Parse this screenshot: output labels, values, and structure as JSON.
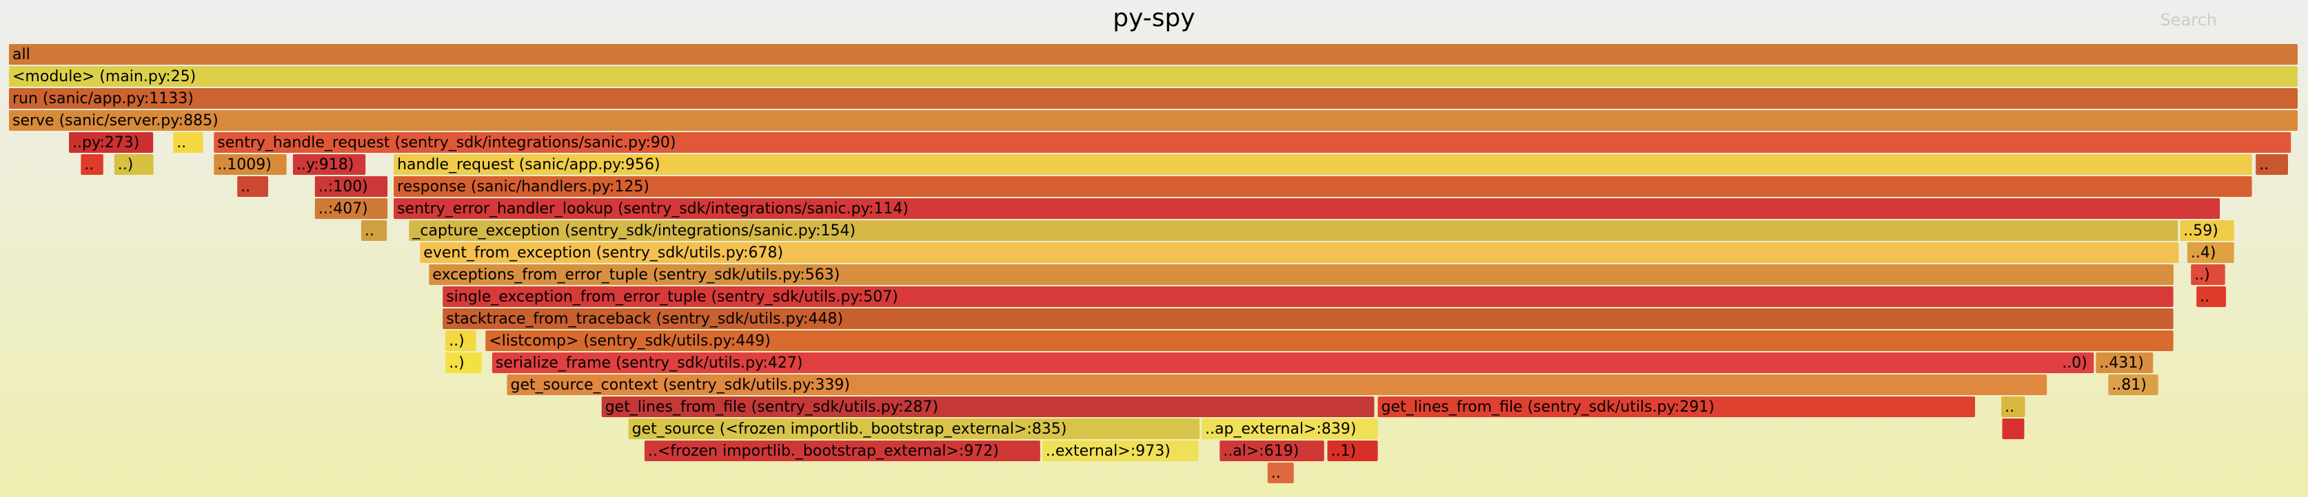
{
  "title": "py-spy",
  "search": {
    "placeholder": "Search"
  },
  "chart_data": {
    "type": "flamegraph",
    "title": "py-spy",
    "total_percent": 100,
    "frames": [
      {
        "depth": 0,
        "start": 0.0,
        "width": 100.0,
        "label": "all",
        "color": "#d07838"
      },
      {
        "depth": 1,
        "start": 0.0,
        "width": 100.0,
        "label": "<module> (main.py:25)",
        "color": "#dcd04a"
      },
      {
        "depth": 2,
        "start": 0.0,
        "width": 100.0,
        "label": "run (sanic/app.py:1133)",
        "color": "#cc6330"
      },
      {
        "depth": 3,
        "start": 0.0,
        "width": 100.0,
        "label": "serve (sanic/server.py:885)",
        "color": "#d88a3a"
      },
      {
        "depth": 4,
        "start": 2.62,
        "width": 3.74,
        "label": "..py:273)",
        "color": "#cc3030"
      },
      {
        "depth": 4,
        "start": 7.17,
        "width": 1.36,
        "label": "..",
        "color": "#f4d840"
      },
      {
        "depth": 4,
        "start": 8.95,
        "width": 90.76,
        "label": "sentry_handle_request (sentry_sdk/integrations/sanic.py:90)",
        "color": "#e05838"
      },
      {
        "depth": 5,
        "start": 3.14,
        "width": 1.04,
        "label": "..",
        "color": "#e03a2a"
      },
      {
        "depth": 5,
        "start": 4.6,
        "width": 1.77,
        "label": "..)",
        "color": "#d8c040"
      },
      {
        "depth": 5,
        "start": 8.95,
        "width": 3.23,
        "label": "..1009)",
        "color": "#d88a3a"
      },
      {
        "depth": 5,
        "start": 12.4,
        "width": 3.23,
        "label": "..y:918)",
        "color": "#d03838"
      },
      {
        "depth": 5,
        "start": 16.8,
        "width": 81.2,
        "label": "handle_request (sanic/app.py:956)",
        "color": "#f0cc48"
      },
      {
        "depth": 5,
        "start": 98.11,
        "width": 1.47,
        "label": "..",
        "color": "#c85830"
      },
      {
        "depth": 6,
        "start": 9.97,
        "width": 1.41,
        "label": "..",
        "color": "#cc4830"
      },
      {
        "depth": 6,
        "start": 13.36,
        "width": 3.23,
        "label": "..:100)",
        "color": "#cc3838"
      },
      {
        "depth": 6,
        "start": 16.8,
        "width": 81.2,
        "label": "response (sanic/handlers.py:125)",
        "color": "#d86030"
      },
      {
        "depth": 7,
        "start": 13.36,
        "width": 3.23,
        "label": "..:407)",
        "color": "#d07a38"
      },
      {
        "depth": 7,
        "start": 16.8,
        "width": 79.8,
        "label": "sentry_error_handler_lookup (sentry_sdk/integrations/sanic.py:114)",
        "color": "#d43838"
      },
      {
        "depth": 8,
        "start": 15.38,
        "width": 1.18,
        "label": "..",
        "color": "#d0a040"
      },
      {
        "depth": 8,
        "start": 17.47,
        "width": 77.3,
        "label": "_capture_exception (sentry_sdk/integrations/sanic.py:154)",
        "color": "#d4b848"
      },
      {
        "depth": 8,
        "start": 94.8,
        "width": 2.42,
        "label": "..59)",
        "color": "#f0cc48"
      },
      {
        "depth": 9,
        "start": 17.95,
        "width": 76.85,
        "label": "event_from_exception (sentry_sdk/utils.py:678)",
        "color": "#f4c050"
      },
      {
        "depth": 9,
        "start": 95.12,
        "width": 2.1,
        "label": "..4)",
        "color": "#e0a040"
      },
      {
        "depth": 10,
        "start": 18.34,
        "width": 76.24,
        "label": "exceptions_from_error_tuple (sentry_sdk/utils.py:563)",
        "color": "#d89040"
      },
      {
        "depth": 10,
        "start": 95.28,
        "width": 1.55,
        "label": "..)",
        "color": "#e04a38"
      },
      {
        "depth": 11,
        "start": 18.94,
        "width": 75.63,
        "label": "single_exception_from_error_tuple (sentry_sdk/utils.py:507)",
        "color": "#d83a3a"
      },
      {
        "depth": 11,
        "start": 95.52,
        "width": 1.35,
        "label": "..",
        "color": "#e03a2a"
      },
      {
        "depth": 12,
        "start": 18.94,
        "width": 75.63,
        "label": "stacktrace_from_traceback (sentry_sdk/utils.py:448)",
        "color": "#c86030"
      },
      {
        "depth": 13,
        "start": 19.06,
        "width": 1.4,
        "label": "..)",
        "color": "#f4d840"
      },
      {
        "depth": 13,
        "start": 20.81,
        "width": 73.76,
        "label": "<listcomp> (sentry_sdk/utils.py:449)",
        "color": "#d86a30"
      },
      {
        "depth": 14,
        "start": 19.06,
        "width": 1.64,
        "label": "..)",
        "color": "#f4e040"
      },
      {
        "depth": 14,
        "start": 21.1,
        "width": 70.0,
        "label": "serialize_frame (sentry_sdk/utils.py:427)",
        "color": "#e04040"
      },
      {
        "depth": 14,
        "start": 89.5,
        "width": 1.5,
        "label": "..0)",
        "color": "#e04040"
      },
      {
        "depth": 14,
        "start": 91.13,
        "width": 2.56,
        "label": "..431)",
        "color": "#d89040"
      },
      {
        "depth": 15,
        "start": 21.75,
        "width": 67.3,
        "label": "get_source_context (sentry_sdk/utils.py:339)",
        "color": "#e08840"
      },
      {
        "depth": 15,
        "start": 91.67,
        "width": 2.24,
        "label": "..81)",
        "color": "#dca048"
      },
      {
        "depth": 16,
        "start": 25.88,
        "width": 33.8,
        "label": "get_lines_from_file (sentry_sdk/utils.py:287)",
        "color": "#c43838"
      },
      {
        "depth": 16,
        "start": 59.77,
        "width": 26.14,
        "label": "get_lines_from_file (sentry_sdk/utils.py:291)",
        "color": "#e04030"
      },
      {
        "depth": 16,
        "start": 87.0,
        "width": 1.1,
        "label": "..",
        "color": "#d8b840"
      },
      {
        "depth": 17,
        "start": 27.05,
        "width": 25.0,
        "label": "get_source (<frozen importlib._bootstrap_external>:835)",
        "color": "#d8c448"
      },
      {
        "depth": 17,
        "start": 52.08,
        "width": 7.75,
        "label": "..ap_external>:839)",
        "color": "#f0e058"
      },
      {
        "depth": 17,
        "start": 87.04,
        "width": 1.02,
        "label": "",
        "color": "#d83030"
      },
      {
        "depth": 18,
        "start": 27.75,
        "width": 17.34,
        "label": "..<frozen importlib._bootstrap_external>:972)",
        "color": "#d03838"
      },
      {
        "depth": 18,
        "start": 45.12,
        "width": 6.88,
        "label": "..external>:973)",
        "color": "#f0e058"
      },
      {
        "depth": 18,
        "start": 52.87,
        "width": 4.62,
        "label": "..al>:619)",
        "color": "#d03838"
      },
      {
        "depth": 18,
        "start": 57.57,
        "width": 2.26,
        "label": "..1)",
        "color": "#d83028"
      },
      {
        "depth": 19,
        "start": 54.96,
        "width": 1.2,
        "label": "..",
        "color": "#e06840"
      }
    ]
  }
}
